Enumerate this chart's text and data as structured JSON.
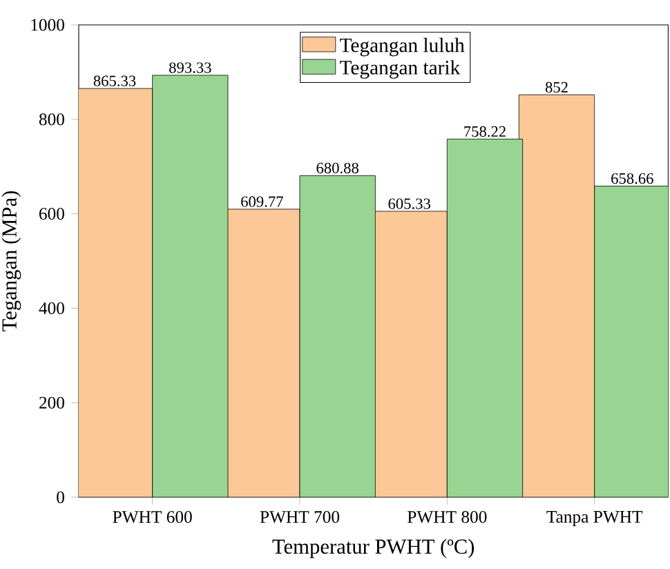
{
  "chart_data": {
    "type": "bar",
    "xlabel": "Temperatur PWHT (ºC)",
    "ylabel": "Tegangan (MPa)",
    "categories": [
      "PWHT 600",
      "PWHT 700",
      "PWHT 800",
      "Tanpa PWHT"
    ],
    "series": [
      {
        "name": "Tegangan luluh",
        "color": "#fdc897",
        "values": [
          865.33,
          609.77,
          605.33,
          852
        ]
      },
      {
        "name": "Tegangan tarik",
        "color": "#98d592",
        "values": [
          893.33,
          680.88,
          758.22,
          658.66
        ]
      }
    ],
    "ylim": [
      0,
      1000
    ],
    "yticks": [
      0,
      200,
      400,
      600,
      800,
      1000
    ],
    "data_labels": true,
    "legend": "top",
    "grid": false
  }
}
